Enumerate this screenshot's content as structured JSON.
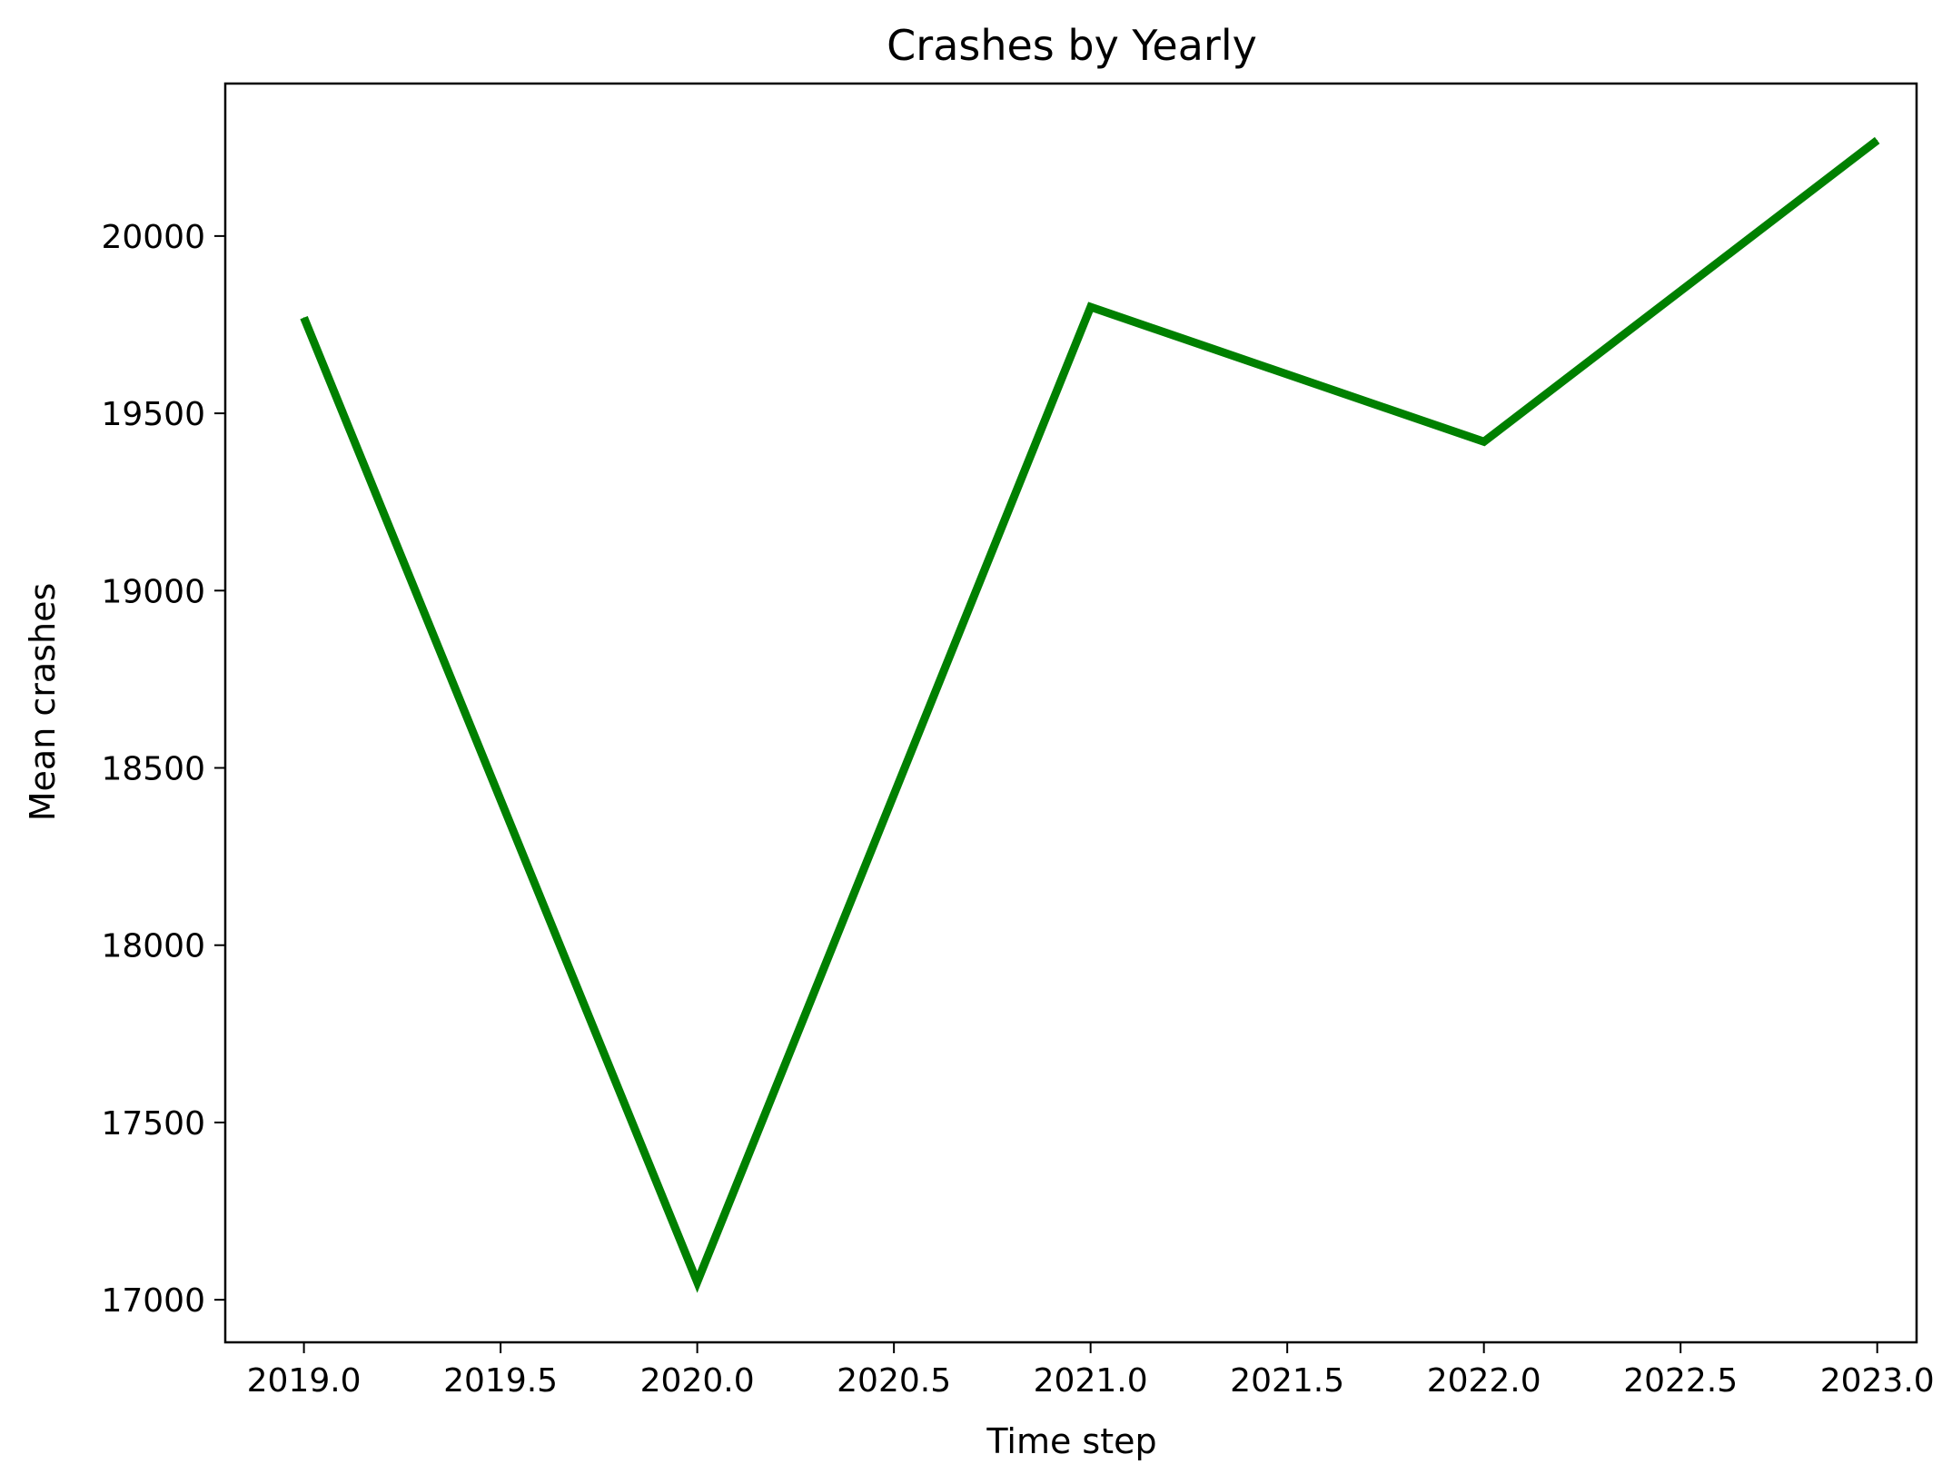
{
  "chart_data": {
    "type": "line",
    "title": "Crashes by Yearly",
    "xlabel": "Time step",
    "ylabel": "Mean crashes",
    "xlim": [
      2018.8,
      2023.1
    ],
    "ylim": [
      16880,
      20430
    ],
    "x_ticks": [
      2019.0,
      2019.5,
      2020.0,
      2020.5,
      2021.0,
      2021.5,
      2022.0,
      2022.5,
      2023.0
    ],
    "x_tick_labels": [
      "2019.0",
      "2019.5",
      "2020.0",
      "2020.5",
      "2021.0",
      "2021.5",
      "2022.0",
      "2022.5",
      "2023.0"
    ],
    "y_ticks": [
      17000,
      17500,
      18000,
      18500,
      19000,
      19500,
      20000
    ],
    "y_tick_labels": [
      "17000",
      "17500",
      "18000",
      "18500",
      "19000",
      "19500",
      "20000"
    ],
    "grid": false,
    "legend": "none",
    "series": [
      {
        "color": "#008000",
        "x": [
          2019,
          2020,
          2021,
          2022,
          2023
        ],
        "y": [
          19770,
          17050,
          19800,
          19420,
          20270
        ]
      }
    ]
  }
}
